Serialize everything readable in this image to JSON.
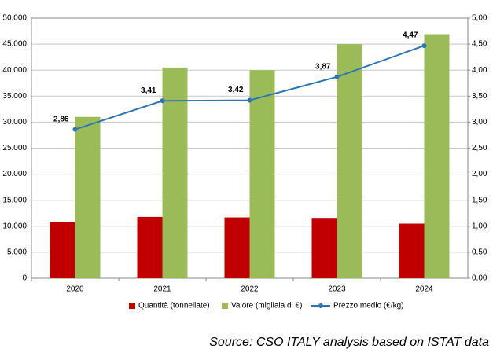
{
  "chart_data": {
    "type": "bar",
    "categories": [
      "2020",
      "2021",
      "2022",
      "2023",
      "2024"
    ],
    "series": [
      {
        "name": "Quantità (tonnellate)",
        "color": "#c00000",
        "values": [
          10800,
          11800,
          11700,
          11600,
          10500
        ]
      },
      {
        "name": "Valore (migliaia di €)",
        "color": "#9bbb59",
        "values": [
          31000,
          40500,
          40000,
          45000,
          46900
        ]
      },
      {
        "name": "Prezzo medio (€/kg)",
        "type": "line",
        "axis": "y2",
        "color": "#2e75b6",
        "values": [
          2.86,
          3.41,
          3.42,
          3.87,
          4.47
        ],
        "value_labels": [
          "2,86",
          "3,41",
          "3,42",
          "3,87",
          "4,47"
        ]
      }
    ],
    "ylim": [
      0,
      50000
    ],
    "yticks": [
      {
        "value": 0,
        "label": "0"
      },
      {
        "value": 5000,
        "label": "5.000"
      },
      {
        "value": 10000,
        "label": "10.000"
      },
      {
        "value": 15000,
        "label": "15.000"
      },
      {
        "value": 20000,
        "label": "20.000"
      },
      {
        "value": 25000,
        "label": "25.000"
      },
      {
        "value": 30000,
        "label": "30.000"
      },
      {
        "value": 35000,
        "label": "35.000"
      },
      {
        "value": 40000,
        "label": "40.000"
      },
      {
        "value": 45000,
        "label": "45.000"
      },
      {
        "value": 50000,
        "label": "50.000"
      }
    ],
    "y2lim": [
      0,
      5
    ],
    "y2ticks": [
      {
        "value": 0,
        "label": "0,00"
      },
      {
        "value": 0.5,
        "label": "0,50"
      },
      {
        "value": 1,
        "label": "1,00"
      },
      {
        "value": 1.5,
        "label": "1,50"
      },
      {
        "value": 2,
        "label": "2,00"
      },
      {
        "value": 2.5,
        "label": "2,50"
      },
      {
        "value": 3,
        "label": "3,00"
      },
      {
        "value": 3.5,
        "label": "3,50"
      },
      {
        "value": 4,
        "label": "4,00"
      },
      {
        "value": 4.5,
        "label": "4,50"
      },
      {
        "value": 5,
        "label": "5,00"
      }
    ],
    "grid": true,
    "legend": "bottom",
    "source": "Source: CSO ITALY analysis based on ISTAT data"
  }
}
